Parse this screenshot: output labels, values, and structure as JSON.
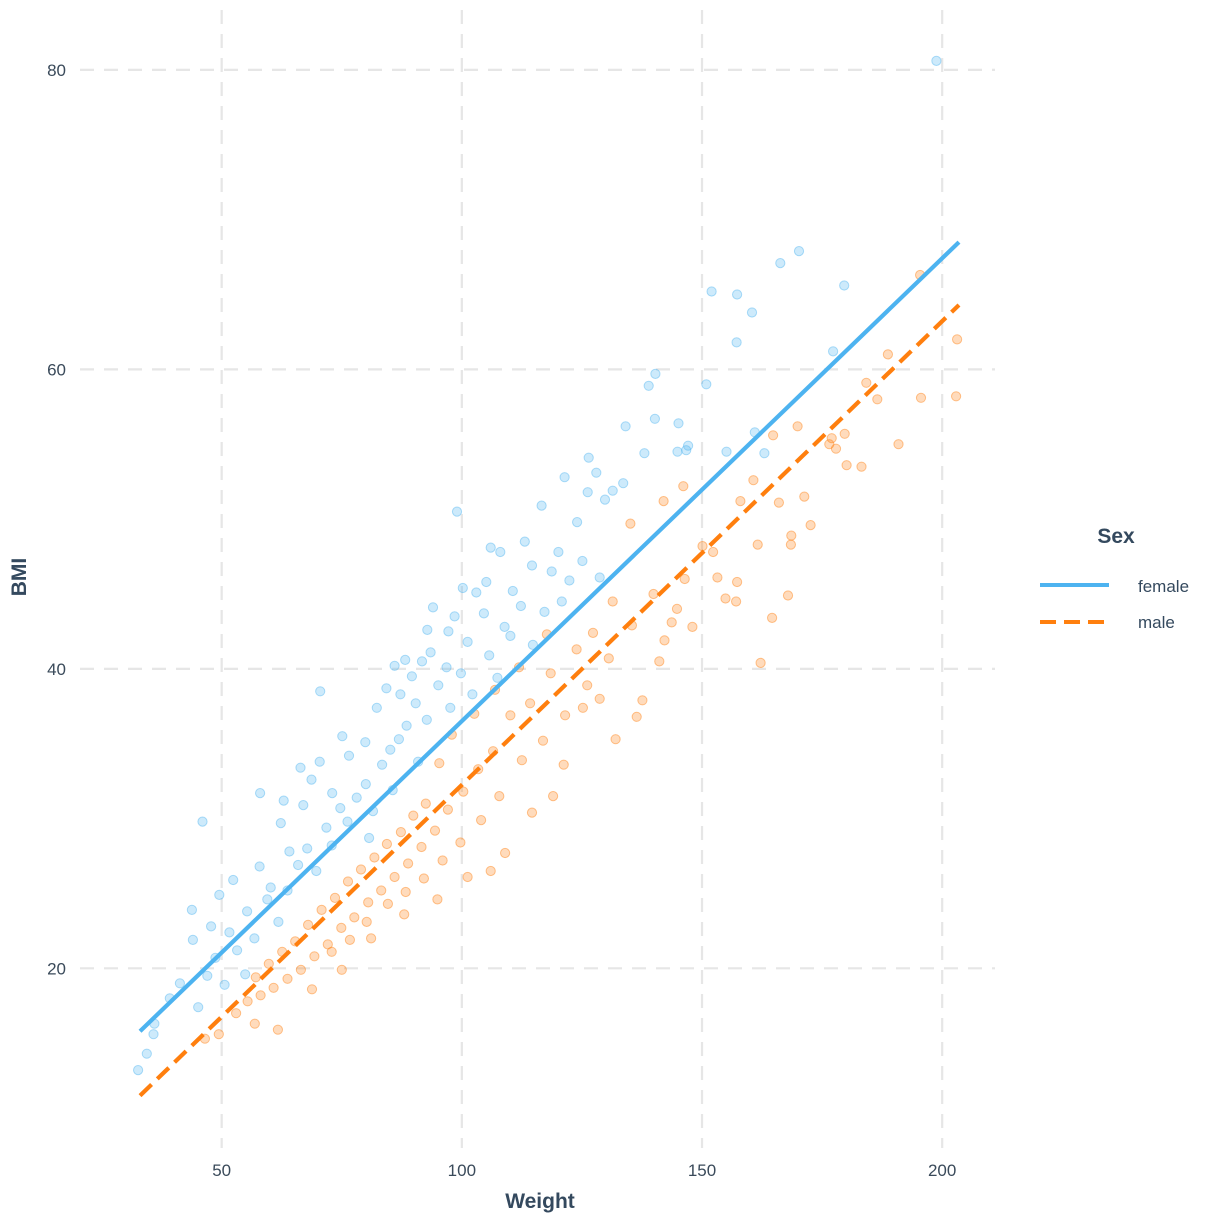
{
  "chart_data": {
    "type": "scatter",
    "title": "",
    "xlabel": "Weight",
    "ylabel": "BMI",
    "xlim": [
      20.5,
      211
    ],
    "ylim": [
      8,
      84
    ],
    "x_ticks": [
      {
        "value": 50,
        "label": "50"
      },
      {
        "value": 100,
        "label": "100"
      },
      {
        "value": 150,
        "label": "150"
      },
      {
        "value": 200,
        "label": "200"
      }
    ],
    "y_ticks": [
      {
        "value": 20,
        "label": "20"
      },
      {
        "value": 40,
        "label": "40"
      },
      {
        "value": 60,
        "label": "60"
      },
      {
        "value": 80,
        "label": "80"
      }
    ],
    "grid": true,
    "legend": {
      "title": "Sex",
      "placement": "right"
    },
    "series": [
      {
        "name": "female",
        "color": "#4db3f0",
        "line_style": "solid",
        "trend_line": [
          [
            33,
            15.8
          ],
          [
            203.5,
            68.5
          ]
        ],
        "points": [
          [
            198.8,
            80.6
          ],
          [
            170.2,
            67.9
          ],
          [
            166.3,
            67.1
          ],
          [
            157.3,
            65.0
          ],
          [
            152.0,
            65.2
          ],
          [
            179.6,
            65.6
          ],
          [
            160.4,
            63.8
          ],
          [
            157.2,
            61.8
          ],
          [
            140.3,
            59.7
          ],
          [
            150.9,
            59.0
          ],
          [
            138.9,
            58.9
          ],
          [
            177.3,
            61.2
          ],
          [
            134.1,
            56.2
          ],
          [
            140.2,
            56.7
          ],
          [
            145.1,
            56.4
          ],
          [
            161.0,
            55.8
          ],
          [
            138.0,
            54.4
          ],
          [
            144.9,
            54.5
          ],
          [
            146.7,
            54.6
          ],
          [
            155.1,
            54.5
          ],
          [
            126.4,
            54.1
          ],
          [
            128.0,
            53.1
          ],
          [
            121.4,
            52.8
          ],
          [
            126.2,
            51.8
          ],
          [
            131.4,
            51.9
          ],
          [
            116.6,
            50.9
          ],
          [
            129.8,
            51.3
          ],
          [
            99.0,
            50.5
          ],
          [
            147.1,
            54.9
          ],
          [
            163.0,
            54.4
          ],
          [
            133.6,
            52.4
          ],
          [
            124.0,
            49.8
          ],
          [
            113.1,
            48.5
          ],
          [
            106.0,
            48.1
          ],
          [
            108.0,
            47.8
          ],
          [
            120.1,
            47.8
          ],
          [
            114.6,
            46.9
          ],
          [
            105.1,
            45.8
          ],
          [
            103.0,
            45.1
          ],
          [
            98.5,
            43.5
          ],
          [
            94.0,
            44.1
          ],
          [
            100.2,
            45.4
          ],
          [
            110.6,
            45.2
          ],
          [
            97.2,
            42.5
          ],
          [
            92.8,
            42.6
          ],
          [
            88.2,
            40.6
          ],
          [
            86.0,
            40.2
          ],
          [
            70.5,
            38.5
          ],
          [
            46.0,
            29.8
          ],
          [
            43.8,
            23.9
          ],
          [
            39.2,
            18.0
          ],
          [
            36.0,
            16.3
          ],
          [
            34.4,
            14.3
          ],
          [
            32.6,
            13.2
          ],
          [
            35.8,
            15.6
          ],
          [
            47.0,
            19.5
          ],
          [
            48.7,
            20.7
          ],
          [
            51.6,
            22.4
          ],
          [
            44.0,
            21.9
          ],
          [
            41.3,
            19.0
          ],
          [
            57.9,
            26.8
          ],
          [
            60.2,
            25.4
          ],
          [
            64.1,
            27.8
          ],
          [
            58.0,
            31.7
          ],
          [
            62.3,
            29.7
          ],
          [
            67.0,
            30.9
          ],
          [
            68.7,
            32.6
          ],
          [
            70.4,
            33.8
          ],
          [
            73.0,
            31.7
          ],
          [
            76.5,
            34.2
          ],
          [
            79.9,
            35.1
          ],
          [
            82.3,
            37.4
          ],
          [
            84.3,
            38.7
          ],
          [
            87.2,
            38.3
          ],
          [
            89.6,
            39.5
          ],
          [
            91.7,
            40.5
          ],
          [
            93.5,
            41.1
          ],
          [
            96.8,
            40.1
          ],
          [
            101.2,
            41.8
          ],
          [
            104.6,
            43.7
          ],
          [
            108.9,
            42.8
          ],
          [
            112.3,
            44.2
          ],
          [
            118.7,
            46.5
          ],
          [
            122.4,
            45.9
          ],
          [
            55.3,
            23.8
          ],
          [
            53.2,
            21.2
          ],
          [
            56.8,
            22.0
          ],
          [
            59.5,
            24.6
          ],
          [
            61.8,
            23.1
          ],
          [
            63.7,
            25.2
          ],
          [
            65.9,
            26.9
          ],
          [
            67.8,
            28.0
          ],
          [
            69.7,
            26.5
          ],
          [
            71.8,
            29.4
          ],
          [
            72.9,
            28.2
          ],
          [
            74.7,
            30.7
          ],
          [
            76.2,
            29.8
          ],
          [
            78.1,
            31.4
          ],
          [
            80.0,
            32.3
          ],
          [
            81.5,
            30.5
          ],
          [
            83.4,
            33.6
          ],
          [
            85.1,
            34.6
          ],
          [
            86.9,
            35.3
          ],
          [
            88.5,
            36.2
          ],
          [
            90.4,
            37.7
          ],
          [
            92.7,
            36.6
          ],
          [
            95.1,
            38.9
          ],
          [
            97.6,
            37.4
          ],
          [
            99.8,
            39.7
          ],
          [
            102.2,
            38.3
          ],
          [
            105.7,
            40.9
          ],
          [
            107.4,
            39.4
          ],
          [
            110.1,
            42.2
          ],
          [
            114.8,
            41.6
          ],
          [
            117.2,
            43.8
          ],
          [
            120.8,
            44.5
          ],
          [
            125.1,
            47.2
          ],
          [
            128.7,
            46.1
          ],
          [
            49.5,
            24.9
          ],
          [
            52.4,
            25.9
          ],
          [
            54.9,
            19.6
          ],
          [
            50.6,
            18.9
          ],
          [
            45.1,
            17.4
          ],
          [
            47.8,
            22.8
          ],
          [
            62.9,
            31.2
          ],
          [
            66.4,
            33.4
          ],
          [
            75.1,
            35.5
          ],
          [
            80.7,
            28.7
          ],
          [
            85.6,
            31.9
          ],
          [
            90.9,
            33.8
          ]
        ]
      },
      {
        "name": "male",
        "color": "#ff7f0e",
        "line_style": "dashed",
        "trend_line": [
          [
            33,
            11.5
          ],
          [
            203.5,
            64.3
          ]
        ],
        "points": [
          [
            203.1,
            62.0
          ],
          [
            202.9,
            58.2
          ],
          [
            195.4,
            66.3
          ],
          [
            190.9,
            55.0
          ],
          [
            186.5,
            58.0
          ],
          [
            184.2,
            59.1
          ],
          [
            183.2,
            53.5
          ],
          [
            180.1,
            53.6
          ],
          [
            179.7,
            55.7
          ],
          [
            177.9,
            54.7
          ],
          [
            177.0,
            55.4
          ],
          [
            176.5,
            55.0
          ],
          [
            172.6,
            49.6
          ],
          [
            171.3,
            51.5
          ],
          [
            169.9,
            56.2
          ],
          [
            168.6,
            48.9
          ],
          [
            168.5,
            48.3
          ],
          [
            167.9,
            44.9
          ],
          [
            164.6,
            43.4
          ],
          [
            162.2,
            40.4
          ],
          [
            161.6,
            48.3
          ],
          [
            164.8,
            55.6
          ],
          [
            166.0,
            51.1
          ],
          [
            158.0,
            51.2
          ],
          [
            160.7,
            52.6
          ],
          [
            157.3,
            45.8
          ],
          [
            157.1,
            44.5
          ],
          [
            154.9,
            44.7
          ],
          [
            153.2,
            46.1
          ],
          [
            152.3,
            47.8
          ],
          [
            150.1,
            48.2
          ],
          [
            148.0,
            42.8
          ],
          [
            146.4,
            46.0
          ],
          [
            144.8,
            44.0
          ],
          [
            143.7,
            43.1
          ],
          [
            142.2,
            41.9
          ],
          [
            141.1,
            40.5
          ],
          [
            137.6,
            37.9
          ],
          [
            136.4,
            36.8
          ],
          [
            132.0,
            35.3
          ],
          [
            128.7,
            38.0
          ],
          [
            125.2,
            37.4
          ],
          [
            121.2,
            33.6
          ],
          [
            119.0,
            31.5
          ],
          [
            114.6,
            30.4
          ],
          [
            109.0,
            27.7
          ],
          [
            106.0,
            26.5
          ],
          [
            101.2,
            26.1
          ],
          [
            94.9,
            24.6
          ],
          [
            88.0,
            23.6
          ],
          [
            81.1,
            22.0
          ],
          [
            75.0,
            19.9
          ],
          [
            68.8,
            18.6
          ],
          [
            61.7,
            15.9
          ],
          [
            56.9,
            16.3
          ],
          [
            53.0,
            17.0
          ],
          [
            49.4,
            15.6
          ],
          [
            46.5,
            15.3
          ],
          [
            195.6,
            58.1
          ],
          [
            188.7,
            61.0
          ],
          [
            146.1,
            52.2
          ],
          [
            142.0,
            51.2
          ],
          [
            135.1,
            49.7
          ],
          [
            131.4,
            44.5
          ],
          [
            127.3,
            42.4
          ],
          [
            123.9,
            41.3
          ],
          [
            118.5,
            39.7
          ],
          [
            114.2,
            37.7
          ],
          [
            110.1,
            36.9
          ],
          [
            106.5,
            34.5
          ],
          [
            103.4,
            33.3
          ],
          [
            100.3,
            31.8
          ],
          [
            97.1,
            30.6
          ],
          [
            94.4,
            29.2
          ],
          [
            91.6,
            28.1
          ],
          [
            88.8,
            27.0
          ],
          [
            86.0,
            26.1
          ],
          [
            83.2,
            25.2
          ],
          [
            80.5,
            24.4
          ],
          [
            77.6,
            23.4
          ],
          [
            74.9,
            22.7
          ],
          [
            72.1,
            21.6
          ],
          [
            69.3,
            20.8
          ],
          [
            66.5,
            19.9
          ],
          [
            63.7,
            19.3
          ],
          [
            60.8,
            18.7
          ],
          [
            58.1,
            18.2
          ],
          [
            55.4,
            17.8
          ],
          [
            97.9,
            35.6
          ],
          [
            95.3,
            33.7
          ],
          [
            92.5,
            31.0
          ],
          [
            89.9,
            30.2
          ],
          [
            87.3,
            29.1
          ],
          [
            84.4,
            28.3
          ],
          [
            81.8,
            27.4
          ],
          [
            79.0,
            26.6
          ],
          [
            76.3,
            25.8
          ],
          [
            73.6,
            24.7
          ],
          [
            70.8,
            23.9
          ],
          [
            68.0,
            22.9
          ],
          [
            65.3,
            21.8
          ],
          [
            62.6,
            21.1
          ],
          [
            59.8,
            20.3
          ],
          [
            57.1,
            19.4
          ],
          [
            112.5,
            33.9
          ],
          [
            116.9,
            35.2
          ],
          [
            121.5,
            36.9
          ],
          [
            126.1,
            38.9
          ],
          [
            130.6,
            40.7
          ],
          [
            135.4,
            42.9
          ],
          [
            139.9,
            45.0
          ],
          [
            107.8,
            31.5
          ],
          [
            104.0,
            29.9
          ],
          [
            99.7,
            28.4
          ],
          [
            96.0,
            27.2
          ],
          [
            92.1,
            26.0
          ],
          [
            88.3,
            25.1
          ],
          [
            84.6,
            24.3
          ],
          [
            80.2,
            23.1
          ],
          [
            76.7,
            21.9
          ],
          [
            72.9,
            21.1
          ],
          [
            106.9,
            38.6
          ],
          [
            102.6,
            37.0
          ],
          [
            111.9,
            40.1
          ],
          [
            117.7,
            42.3
          ]
        ]
      }
    ]
  }
}
